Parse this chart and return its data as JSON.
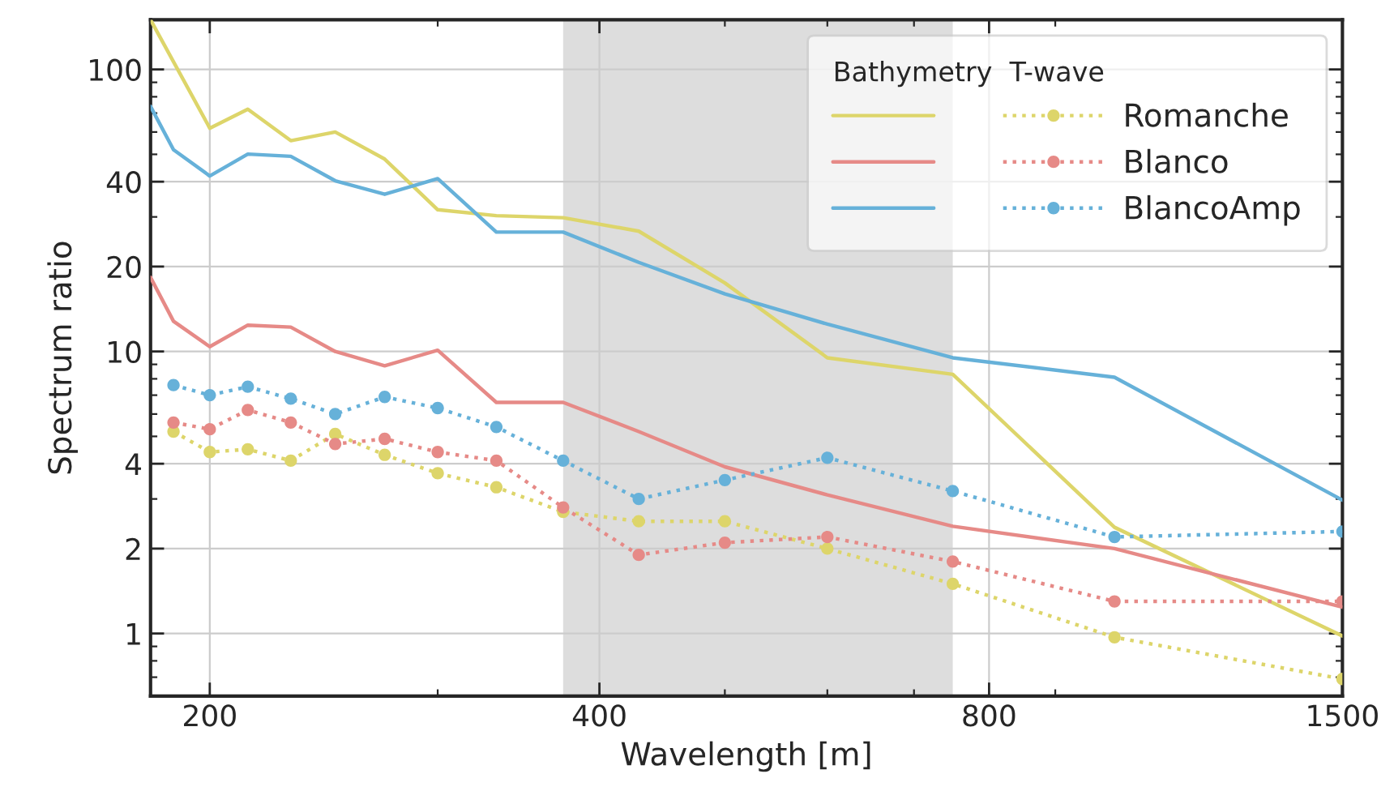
{
  "chart_data": {
    "type": "line",
    "xlabel": "Wavelength [m]",
    "ylabel": "Spectrum ratio",
    "legend_title": "Bathymetry  T-wave",
    "log": "xy",
    "grid": true,
    "legend": "top right",
    "xlim": [
      180,
      1500
    ],
    "xticks": [
      200,
      400,
      800,
      1500
    ],
    "ylim": [
      0.6,
      150
    ],
    "yticks": [
      1,
      2,
      4,
      10,
      20,
      40,
      100
    ],
    "bands": [
      {
        "axis": "x",
        "from": 375,
        "to": 750,
        "color": "#dddddd"
      }
    ],
    "series": [
      {
        "color": "#ddd56a",
        "line_style": "solid",
        "marker": "none",
        "x": [
          180,
          200,
          214,
          231,
          250,
          273,
          300,
          333,
          375,
          429,
          500,
          600,
          750,
          1000,
          1500
        ],
        "values": [
          150,
          61.9,
          72.3,
          55.9,
          60,
          48.1,
          31.8,
          30.3,
          29.8,
          26.7,
          17.5,
          9.5,
          8.3,
          2.38,
          0.98
        ]
      },
      {
        "color": "#e68a87",
        "line_style": "solid",
        "marker": "none",
        "x": [
          180,
          187.5,
          200,
          214,
          231,
          250,
          273,
          300,
          333,
          375,
          429,
          500,
          600,
          750,
          1000,
          1500
        ],
        "values": [
          18.3,
          12.8,
          10.4,
          12.4,
          12.2,
          10,
          8.9,
          10.1,
          6.6,
          6.6,
          5.2,
          3.9,
          3.1,
          2.4,
          2.0,
          1.24
        ]
      },
      {
        "color": "#66b1d9",
        "line_style": "solid",
        "marker": "none",
        "x": [
          180,
          187.5,
          200,
          214,
          231,
          250,
          273,
          300,
          333,
          375,
          429,
          500,
          600,
          750,
          1000,
          1500
        ],
        "values": [
          73.9,
          51.9,
          41.9,
          50.1,
          49.2,
          40.3,
          36.1,
          41,
          26.5,
          26.5,
          20.7,
          16,
          12.5,
          9.5,
          8.1,
          2.97
        ]
      },
      {
        "name": "Romanche",
        "color": "#ddd56a",
        "line_style": "dotted",
        "marker": "circle",
        "x": [
          187.5,
          200,
          214,
          231,
          250,
          273,
          300,
          333,
          375,
          429,
          500,
          600,
          750,
          1000,
          1500
        ],
        "values": [
          5.2,
          4.4,
          4.5,
          4.1,
          5.1,
          4.3,
          3.7,
          3.3,
          2.7,
          2.5,
          2.5,
          2.0,
          1.5,
          0.97,
          0.69
        ]
      },
      {
        "name": "Blanco",
        "color": "#e68a87",
        "line_style": "dotted",
        "marker": "circle",
        "x": [
          187.5,
          200,
          214,
          231,
          250,
          273,
          300,
          333,
          375,
          429,
          500,
          600,
          750,
          1000,
          1500
        ],
        "values": [
          5.6,
          5.3,
          6.2,
          5.6,
          4.7,
          4.9,
          4.4,
          4.1,
          2.8,
          1.9,
          2.1,
          2.2,
          1.8,
          1.3,
          1.3
        ]
      },
      {
        "name": "BlancoAmp",
        "color": "#66b1d9",
        "line_style": "dotted",
        "marker": "circle",
        "x": [
          187.5,
          200,
          214,
          231,
          250,
          273,
          300,
          333,
          375,
          429,
          500,
          600,
          750,
          1000,
          1500
        ],
        "values": [
          7.6,
          7.0,
          7.5,
          6.8,
          6.0,
          6.9,
          6.3,
          5.4,
          4.1,
          3.0,
          3.5,
          4.2,
          3.2,
          2.2,
          2.3
        ]
      }
    ]
  }
}
